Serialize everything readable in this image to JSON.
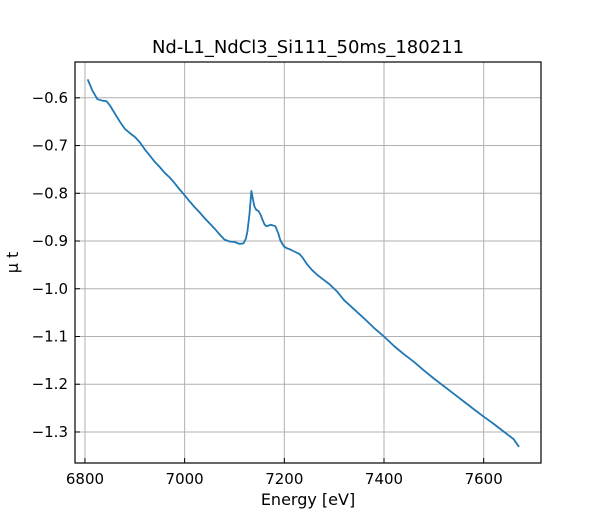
{
  "chart_data": {
    "type": "line",
    "title": "Nd-L1_NdCl3_Si111_50ms_180211",
    "xlabel": "Energy [eV]",
    "ylabel": "μ t",
    "xlim": [
      6780,
      7715
    ],
    "ylim": [
      -1.365,
      -0.525
    ],
    "grid": true,
    "x_ticks": [
      6800,
      7000,
      7200,
      7400,
      7600
    ],
    "y_ticks": [
      -0.6,
      -0.7,
      -0.8,
      -0.9,
      -1.0,
      -1.1,
      -1.2,
      -1.3
    ],
    "series": [
      {
        "color": "#1f77b4",
        "x": [
          6806,
          6815,
          6825,
          6835,
          6843,
          6850,
          6860,
          6870,
          6880,
          6890,
          6900,
          6910,
          6920,
          6930,
          6940,
          6950,
          6960,
          6970,
          6980,
          6990,
          7000,
          7010,
          7020,
          7030,
          7040,
          7050,
          7060,
          7070,
          7080,
          7090,
          7100,
          7110,
          7118,
          7123,
          7126,
          7130,
          7134,
          7137,
          7140,
          7144,
          7148,
          7152,
          7156,
          7160,
          7164,
          7168,
          7172,
          7176,
          7182,
          7188,
          7192,
          7196,
          7200,
          7205,
          7210,
          7220,
          7230,
          7236,
          7245,
          7255,
          7265,
          7275,
          7290,
          7305,
          7320,
          7340,
          7360,
          7380,
          7400,
          7420,
          7440,
          7460,
          7480,
          7500,
          7520,
          7540,
          7560,
          7580,
          7600,
          7620,
          7640,
          7660,
          7670
        ],
        "y": [
          -0.563,
          -0.585,
          -0.603,
          -0.606,
          -0.607,
          -0.616,
          -0.633,
          -0.65,
          -0.665,
          -0.674,
          -0.682,
          -0.693,
          -0.708,
          -0.721,
          -0.734,
          -0.745,
          -0.757,
          -0.767,
          -0.779,
          -0.792,
          -0.804,
          -0.817,
          -0.829,
          -0.84,
          -0.852,
          -0.863,
          -0.874,
          -0.886,
          -0.897,
          -0.901,
          -0.902,
          -0.906,
          -0.905,
          -0.895,
          -0.88,
          -0.845,
          -0.795,
          -0.812,
          -0.828,
          -0.835,
          -0.837,
          -0.844,
          -0.855,
          -0.865,
          -0.869,
          -0.868,
          -0.866,
          -0.867,
          -0.869,
          -0.884,
          -0.898,
          -0.906,
          -0.912,
          -0.915,
          -0.917,
          -0.922,
          -0.927,
          -0.934,
          -0.948,
          -0.96,
          -0.97,
          -0.978,
          -0.99,
          -1.005,
          -1.024,
          -1.043,
          -1.062,
          -1.082,
          -1.1,
          -1.12,
          -1.137,
          -1.153,
          -1.171,
          -1.188,
          -1.204,
          -1.22,
          -1.236,
          -1.252,
          -1.268,
          -1.283,
          -1.299,
          -1.315,
          -1.33
        ]
      }
    ]
  }
}
